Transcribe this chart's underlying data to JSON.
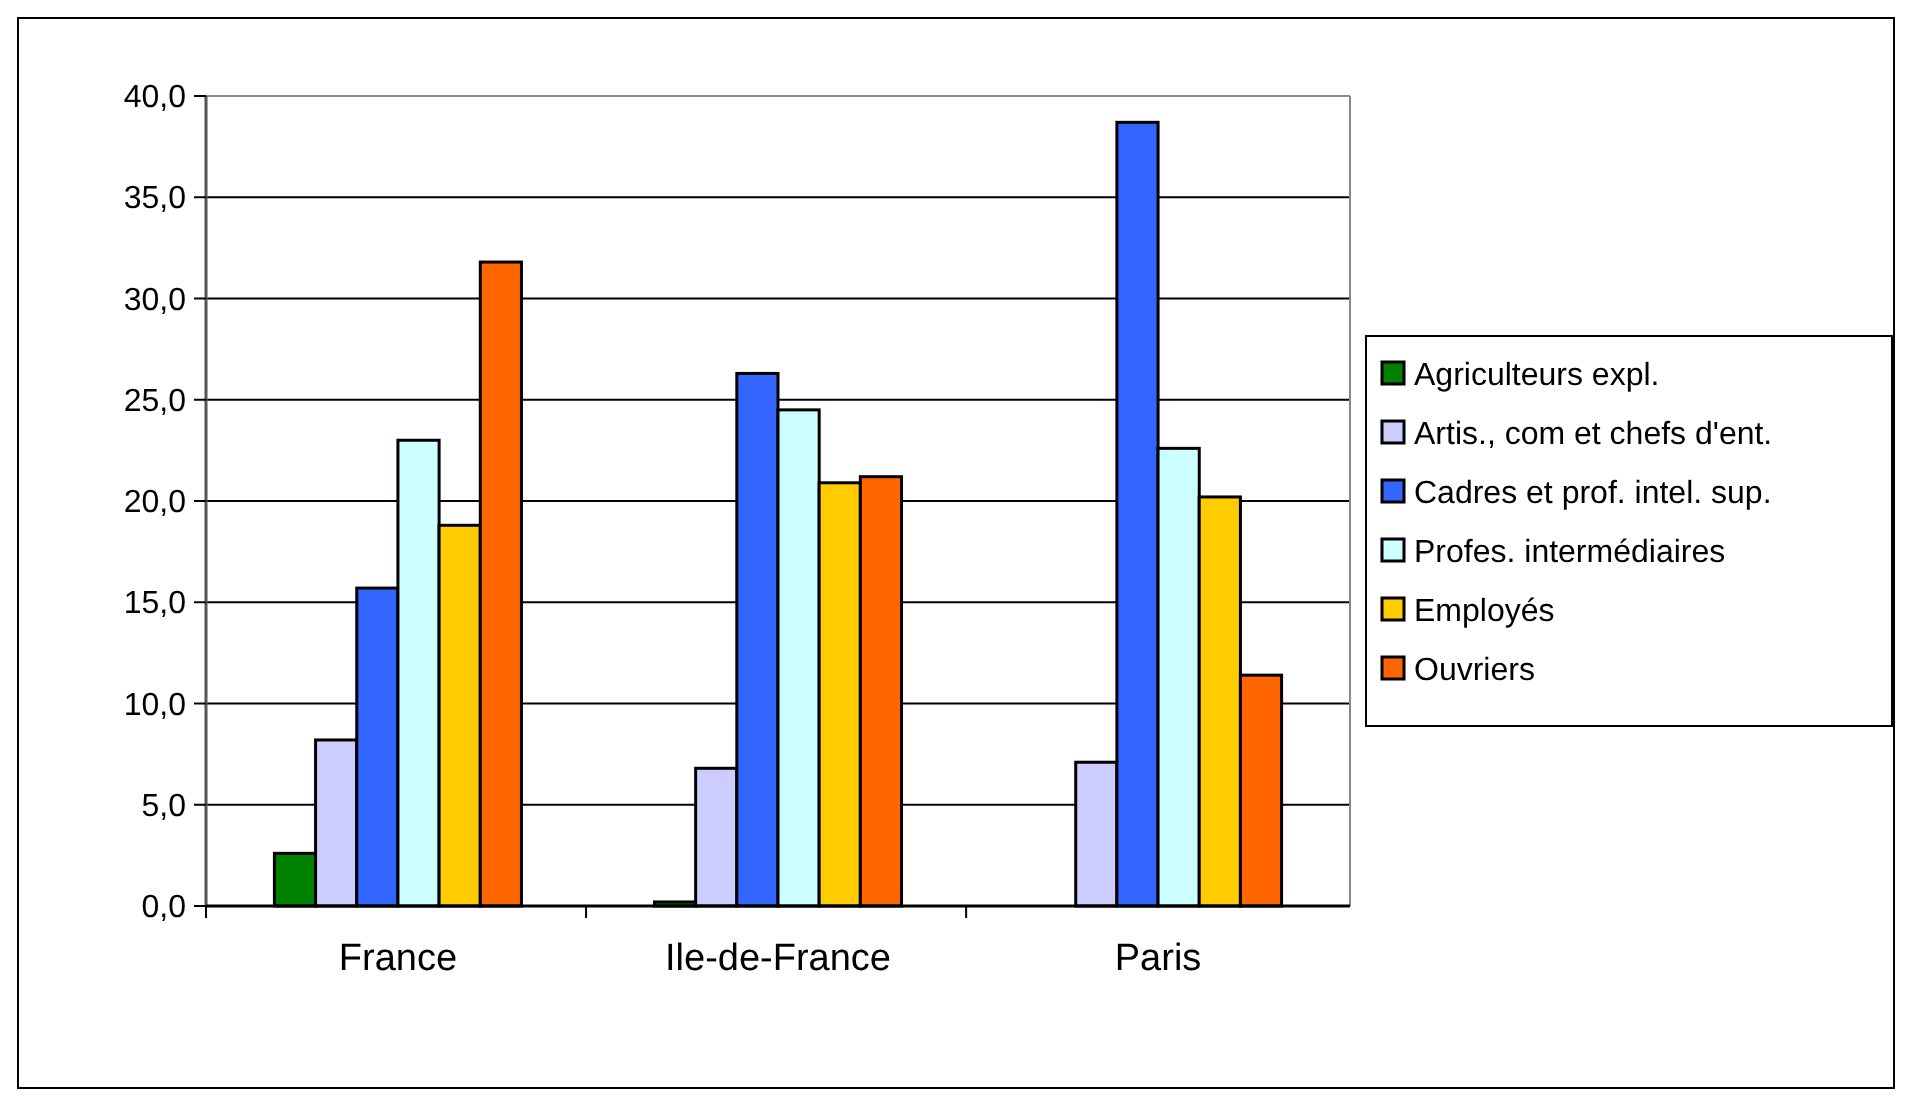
{
  "chart_data": {
    "type": "bar",
    "categories": [
      "France",
      "Ile-de-France",
      "Paris"
    ],
    "series": [
      {
        "name": "Agriculteurs expl.",
        "color": "#008000",
        "values": [
          2.6,
          0.2,
          0
        ]
      },
      {
        "name": "Artis., com et chefs d'ent.",
        "color": "#ccccff",
        "values": [
          8.2,
          6.8,
          7.1
        ]
      },
      {
        "name": "Cadres et prof. intel. sup.",
        "color": "#3366ff",
        "values": [
          15.7,
          26.3,
          38.7
        ]
      },
      {
        "name": "Profes. intermédiaires",
        "color": "#ccffff",
        "values": [
          23.0,
          24.5,
          22.6
        ]
      },
      {
        "name": "Employés",
        "color": "#ffcc00",
        "values": [
          18.8,
          20.9,
          20.2
        ]
      },
      {
        "name": "Ouvriers",
        "color": "#ff6600",
        "values": [
          31.8,
          21.2,
          11.4
        ]
      }
    ],
    "ylim": [
      0,
      40
    ],
    "yticks": [
      {
        "value": 0,
        "label": "0,0"
      },
      {
        "value": 5,
        "label": "5,0"
      },
      {
        "value": 10,
        "label": "10,0"
      },
      {
        "value": 15,
        "label": "15,0"
      },
      {
        "value": 20,
        "label": "20,0"
      },
      {
        "value": 25,
        "label": "25,0"
      },
      {
        "value": 30,
        "label": "30,0"
      },
      {
        "value": 35,
        "label": "35,0"
      },
      {
        "value": 40,
        "label": "40,0"
      }
    ],
    "grid": "y",
    "legend": "right"
  }
}
